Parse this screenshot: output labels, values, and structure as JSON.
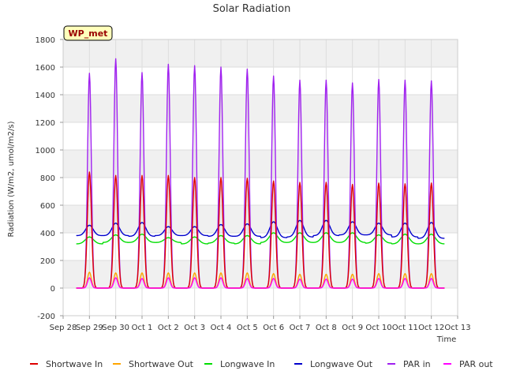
{
  "chart_data": {
    "type": "line",
    "title": "Solar Radiation",
    "xlabel": "Time",
    "ylabel": "Radiation (W/m2, umol/m2/s)",
    "site_label": "WP_met",
    "ylim": [
      -200,
      1800
    ],
    "yticks": [
      -200,
      0,
      200,
      400,
      600,
      800,
      1000,
      1200,
      1400,
      1600,
      1800
    ],
    "xlim_days": [
      0,
      15
    ],
    "xticks": [
      {
        "day": 0,
        "label": "Sep 28"
      },
      {
        "day": 1,
        "label": "Sep 29"
      },
      {
        "day": 2,
        "label": "Sep 30"
      },
      {
        "day": 3,
        "label": "Oct 1"
      },
      {
        "day": 4,
        "label": "Oct 2"
      },
      {
        "day": 5,
        "label": "Oct 3"
      },
      {
        "day": 6,
        "label": "Oct 4"
      },
      {
        "day": 7,
        "label": "Oct 5"
      },
      {
        "day": 8,
        "label": "Oct 6"
      },
      {
        "day": 9,
        "label": "Oct 7"
      },
      {
        "day": 10,
        "label": "Oct 8"
      },
      {
        "day": 11,
        "label": "Oct 9"
      },
      {
        "day": 12,
        "label": "Oct 10"
      },
      {
        "day": 13,
        "label": "Oct 11"
      },
      {
        "day": 14,
        "label": "Oct 12"
      },
      {
        "day": 15,
        "label": "Oct 13"
      }
    ],
    "grid": true,
    "legend_position": "bottom",
    "daily_peak_days": [
      1,
      2,
      3,
      4,
      5,
      6,
      7,
      8,
      9,
      10,
      11,
      12,
      13,
      14
    ],
    "series": [
      {
        "name": "Shortwave In",
        "color": "#dd0000",
        "daily_peaks": [
          840,
          815,
          815,
          815,
          800,
          800,
          795,
          775,
          765,
          765,
          750,
          760,
          755,
          760
        ]
      },
      {
        "name": "Shortwave Out",
        "color": "#ffa500",
        "daily_peaks": [
          115,
          110,
          110,
          110,
          110,
          110,
          110,
          105,
          100,
          100,
          100,
          105,
          105,
          105
        ]
      },
      {
        "name": "Longwave In",
        "color": "#00dd00",
        "daily_min": [
          320,
          330,
          330,
          330,
          320,
          325,
          320,
          330,
          330,
          330,
          330,
          325,
          320,
          320
        ],
        "daily_max": [
          370,
          385,
          390,
          365,
          370,
          380,
          380,
          400,
          400,
          400,
          400,
          385,
          390,
          390
        ]
      },
      {
        "name": "Longwave Out",
        "color": "#0000cc",
        "daily_min": [
          380,
          380,
          375,
          380,
          380,
          375,
          375,
          365,
          370,
          380,
          385,
          385,
          370,
          360
        ],
        "daily_max": [
          455,
          470,
          475,
          445,
          445,
          460,
          465,
          480,
          490,
          490,
          480,
          470,
          470,
          475
        ]
      },
      {
        "name": "PAR in",
        "color": "#a020f0",
        "daily_peaks": [
          1555,
          1660,
          1560,
          1620,
          1610,
          1600,
          1585,
          1535,
          1505,
          1505,
          1485,
          1510,
          1505,
          1500
        ]
      },
      {
        "name": "PAR out",
        "color": "#ff00ff",
        "daily_peaks": [
          75,
          75,
          70,
          75,
          75,
          75,
          70,
          70,
          65,
          65,
          65,
          70,
          70,
          70
        ]
      }
    ]
  }
}
